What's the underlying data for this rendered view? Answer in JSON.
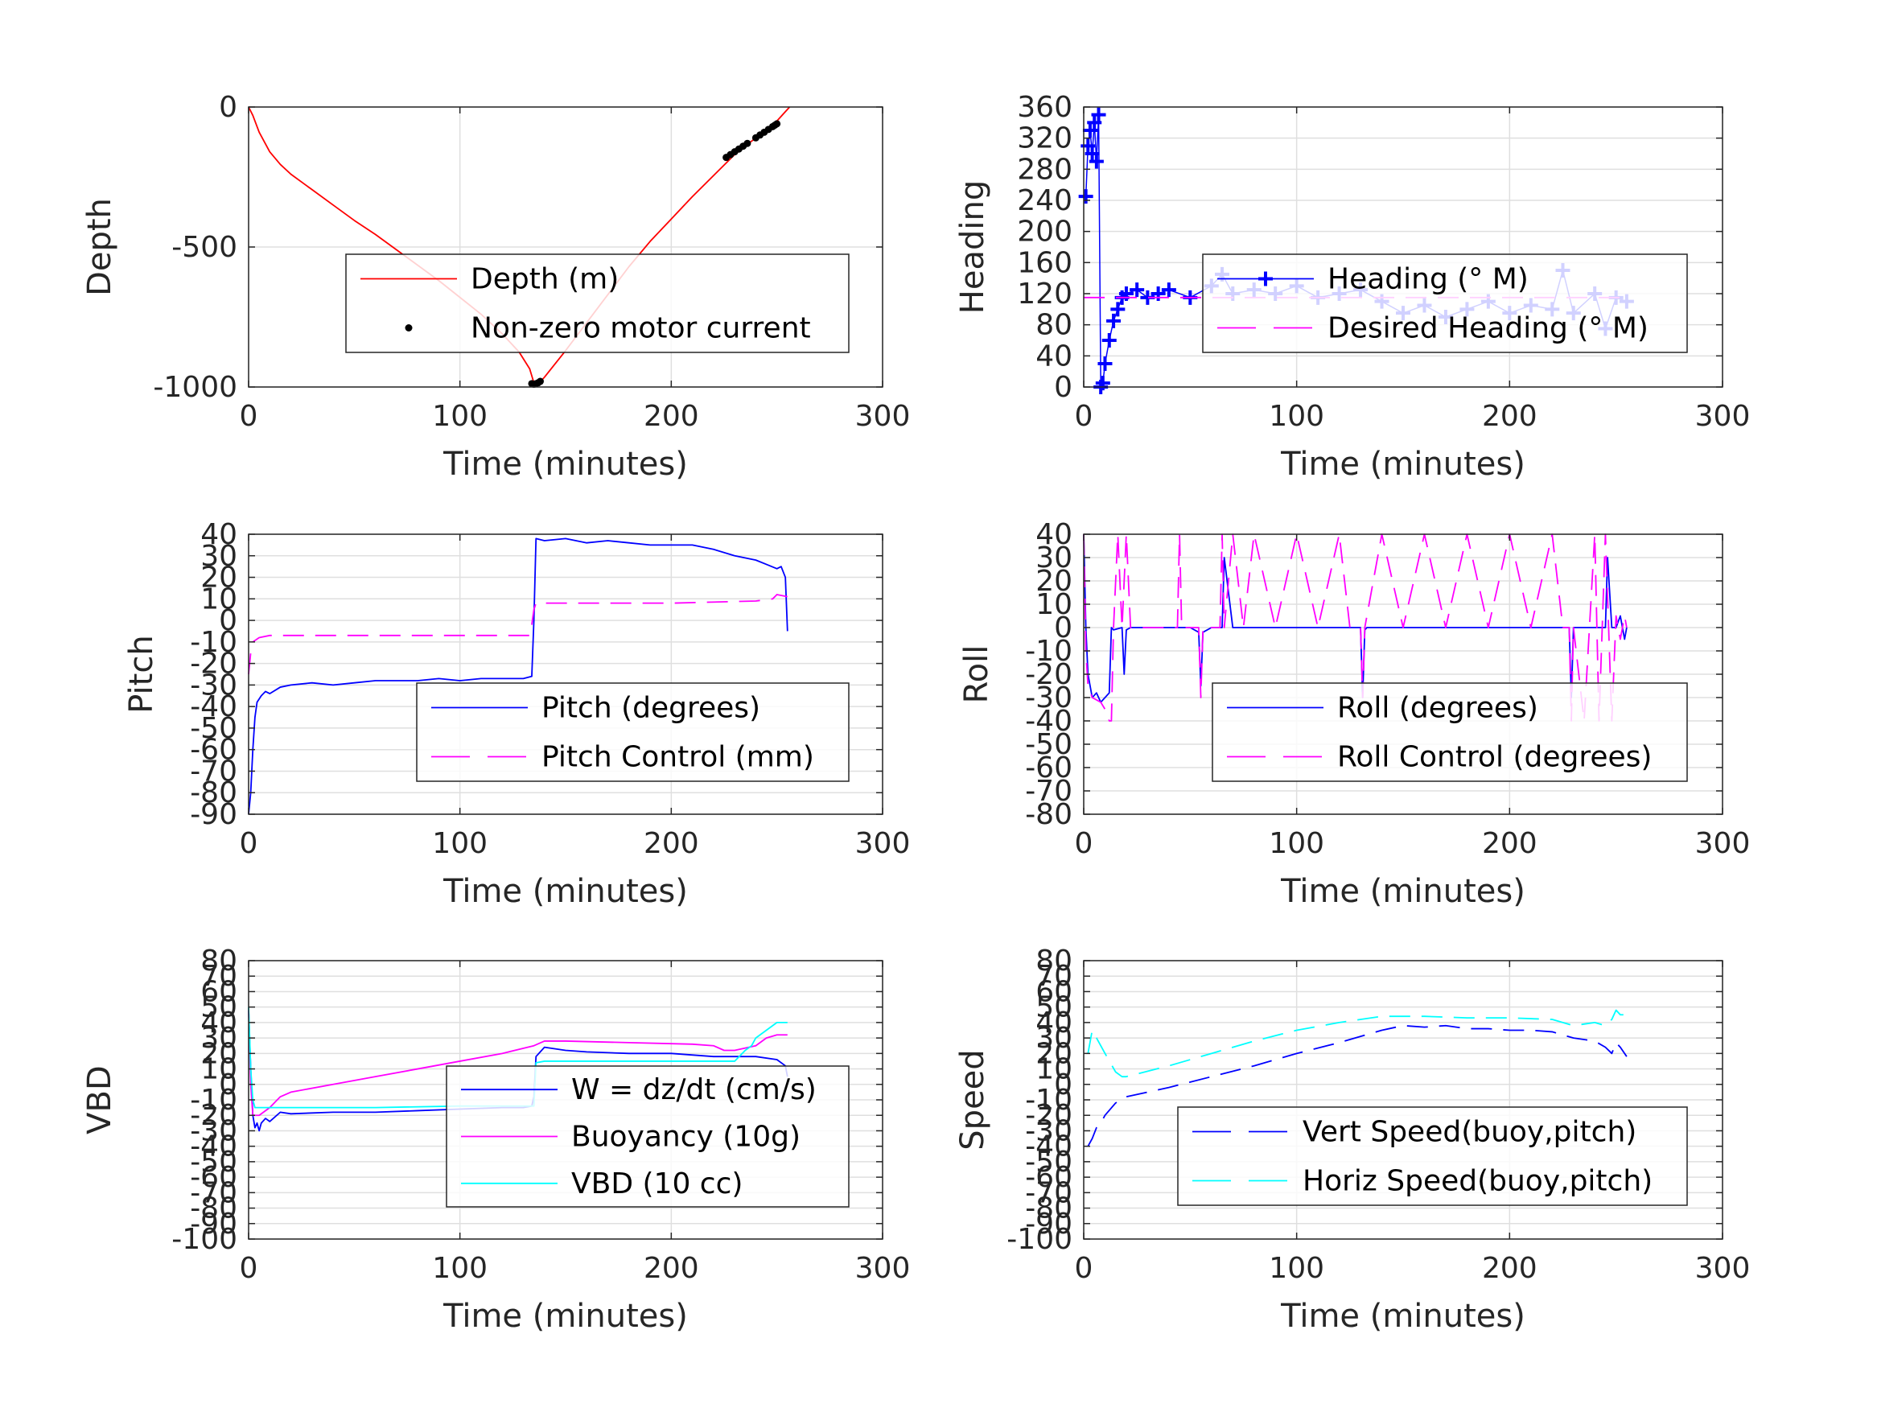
{
  "chart_data": [
    {
      "type": "line",
      "ylabel": "Depth",
      "xlabel": "Time (minutes)",
      "xlim": [
        0,
        300
      ],
      "ylim": [
        -1000,
        0
      ],
      "xticks": [
        "0",
        "100",
        "200",
        "300"
      ],
      "yticks": [
        "0",
        "-500",
        "-1000"
      ],
      "ytick_values": [
        0,
        -500,
        -1000
      ],
      "grid": true,
      "legend_position": "center-right",
      "series": [
        {
          "name": "Depth (m)",
          "color": "#ff0000",
          "style": "solid",
          "x": [
            0,
            2,
            5,
            10,
            15,
            20,
            30,
            40,
            50,
            60,
            70,
            80,
            90,
            100,
            110,
            120,
            128,
            133,
            135,
            137,
            140,
            150,
            160,
            170,
            180,
            190,
            200,
            210,
            220,
            230,
            240,
            250,
            256
          ],
          "y": [
            0,
            -30,
            -90,
            -160,
            -205,
            -240,
            -295,
            -350,
            -405,
            -455,
            -510,
            -565,
            -620,
            -680,
            -740,
            -810,
            -875,
            -935,
            -985,
            -990,
            -965,
            -870,
            -770,
            -670,
            -570,
            -480,
            -400,
            -320,
            -245,
            -170,
            -110,
            -50,
            0
          ]
        },
        {
          "name": "Non-zero motor current",
          "color": "#000000",
          "style": "dots",
          "x": [
            134,
            135,
            136,
            137,
            138,
            226,
            228,
            230,
            232,
            234,
            236,
            240,
            242,
            244,
            246,
            248,
            249,
            250
          ],
          "y": [
            -988,
            -990,
            -988,
            -985,
            -980,
            -180,
            -170,
            -160,
            -150,
            -140,
            -130,
            -110,
            -100,
            -90,
            -80,
            -70,
            -65,
            -60
          ]
        }
      ]
    },
    {
      "type": "line",
      "ylabel": "Heading",
      "xlabel": "Time (minutes)",
      "xlim": [
        0,
        300
      ],
      "ylim": [
        0,
        360
      ],
      "xticks": [
        "0",
        "100",
        "200",
        "300"
      ],
      "yticks": [
        "0",
        "40",
        "80",
        "120",
        "160",
        "200",
        "240",
        "280",
        "320",
        "360"
      ],
      "ytick_values": [
        0,
        40,
        80,
        120,
        160,
        200,
        240,
        280,
        320,
        360
      ],
      "grid": true,
      "legend_position": "center-right",
      "series": [
        {
          "name": "Heading (° M)",
          "color": "#0000ff",
          "style": "plus",
          "x": [
            1,
            2,
            3,
            4,
            5,
            6,
            7,
            8,
            9,
            10,
            12,
            14,
            16,
            18,
            20,
            25,
            30,
            35,
            40,
            50,
            60,
            65,
            70,
            80,
            90,
            100,
            110,
            120,
            130,
            140,
            150,
            160,
            170,
            180,
            190,
            200,
            210,
            220,
            225,
            230,
            240,
            245,
            250,
            255
          ],
          "y": [
            245,
            310,
            330,
            300,
            340,
            290,
            350,
            0,
            5,
            30,
            60,
            85,
            100,
            115,
            120,
            125,
            115,
            120,
            125,
            115,
            130,
            145,
            120,
            125,
            120,
            130,
            115,
            120,
            125,
            110,
            95,
            105,
            90,
            100,
            110,
            95,
            105,
            100,
            150,
            95,
            120,
            75,
            115,
            110
          ]
        },
        {
          "name": "Desired Heading (° M)",
          "color": "#ff00ff",
          "style": "dashed",
          "x": [
            0,
            255
          ],
          "y": [
            115,
            115
          ]
        }
      ]
    },
    {
      "type": "line",
      "ylabel": "Pitch",
      "xlabel": "Time (minutes)",
      "xlim": [
        0,
        300
      ],
      "ylim": [
        -90,
        40
      ],
      "xticks": [
        "0",
        "100",
        "200",
        "300"
      ],
      "yticks": [
        "40",
        "30",
        "20",
        "10",
        "0",
        "-10",
        "-20",
        "-30",
        "-40",
        "-50",
        "-60",
        "-70",
        "-80",
        "-90"
      ],
      "ytick_values": [
        40,
        30,
        20,
        10,
        0,
        -10,
        -20,
        -30,
        -40,
        -50,
        -60,
        -70,
        -80,
        -90
      ],
      "grid": true,
      "legend_position": "center-right",
      "series": [
        {
          "name": "Pitch (degrees)",
          "color": "#0000ff",
          "style": "solid",
          "x": [
            0,
            1,
            2,
            3,
            4,
            6,
            8,
            10,
            15,
            20,
            30,
            40,
            50,
            60,
            70,
            80,
            90,
            100,
            110,
            120,
            130,
            134,
            135,
            136,
            140,
            150,
            160,
            170,
            180,
            190,
            200,
            210,
            220,
            230,
            240,
            245,
            250,
            252,
            254,
            255
          ],
          "y": [
            -90,
            -80,
            -60,
            -45,
            -38,
            -35,
            -33,
            -34,
            -31,
            -30,
            -29,
            -30,
            -29,
            -28,
            -28,
            -28,
            -27,
            -28,
            -27,
            -27,
            -27,
            -26,
            0,
            38,
            37,
            38,
            36,
            37,
            36,
            35,
            35,
            35,
            33,
            30,
            28,
            26,
            24,
            25,
            20,
            -5
          ]
        },
        {
          "name": "Pitch Control (mm)",
          "color": "#ff00ff",
          "style": "dashed",
          "x": [
            0,
            1,
            2,
            5,
            10,
            60,
            120,
            133,
            134,
            135,
            136,
            140,
            200,
            240,
            248,
            250,
            255
          ],
          "y": [
            -25,
            -15,
            -10,
            -8,
            -7,
            -7,
            -7,
            -7,
            -2,
            5,
            8,
            8,
            8,
            9,
            10,
            12,
            11
          ]
        }
      ]
    },
    {
      "type": "line",
      "ylabel": "Roll",
      "xlabel": "Time (minutes)",
      "xlim": [
        0,
        300
      ],
      "ylim": [
        -80,
        40
      ],
      "xticks": [
        "0",
        "100",
        "200",
        "300"
      ],
      "yticks": [
        "40",
        "30",
        "20",
        "10",
        "0",
        "-10",
        "-20",
        "-30",
        "-40",
        "-50",
        "-60",
        "-70",
        "-80"
      ],
      "ytick_values": [
        40,
        30,
        20,
        10,
        0,
        -10,
        -20,
        -30,
        -40,
        -50,
        -60,
        -70,
        -80
      ],
      "grid": true,
      "legend_position": "center-right",
      "series": [
        {
          "name": "Roll (degrees)",
          "color": "#0000ff",
          "style": "solid",
          "x": [
            0,
            1,
            2,
            3,
            4,
            6,
            8,
            10,
            12,
            13,
            14,
            18,
            19,
            20,
            22,
            40,
            50,
            54,
            55,
            56,
            60,
            65,
            66,
            70,
            75,
            80,
            90,
            100,
            110,
            120,
            130,
            131,
            132,
            133,
            140,
            150,
            160,
            170,
            180,
            190,
            200,
            210,
            220,
            228,
            229,
            230,
            240,
            245,
            246,
            248,
            250,
            252,
            254,
            255
          ],
          "y": [
            40,
            0,
            -20,
            -25,
            -30,
            -28,
            -32,
            -30,
            -28,
            0,
            -1,
            0,
            -20,
            -1,
            0,
            0,
            0,
            -2,
            -25,
            -2,
            0,
            0,
            30,
            0,
            0,
            0,
            0,
            0,
            0,
            0,
            0,
            -30,
            -1,
            0,
            0,
            0,
            0,
            0,
            0,
            0,
            0,
            0,
            0,
            0,
            -30,
            0,
            0,
            0,
            30,
            0,
            0,
            5,
            -5,
            0
          ]
        },
        {
          "name": "Roll Control (degrees)",
          "color": "#ff00ff",
          "style": "dashed",
          "x": [
            0,
            1,
            2,
            4,
            8,
            10,
            12,
            13,
            14,
            16,
            18,
            20,
            22,
            40,
            44,
            45,
            46,
            54,
            55,
            56,
            60,
            64,
            65,
            66,
            70,
            75,
            80,
            90,
            100,
            110,
            120,
            125,
            130,
            131,
            132,
            140,
            150,
            160,
            170,
            180,
            190,
            200,
            210,
            220,
            225,
            228,
            229,
            230,
            235,
            240,
            242,
            245,
            248,
            250,
            252,
            254,
            255
          ],
          "y": [
            40,
            -10,
            -25,
            -30,
            -32,
            -35,
            -40,
            -40,
            0,
            40,
            0,
            40,
            0,
            0,
            0,
            40,
            0,
            0,
            -30,
            0,
            0,
            0,
            40,
            0,
            40,
            0,
            40,
            0,
            40,
            0,
            40,
            0,
            0,
            -30,
            0,
            40,
            0,
            40,
            0,
            40,
            0,
            40,
            0,
            40,
            0,
            0,
            -40,
            0,
            -40,
            40,
            -40,
            40,
            -40,
            5,
            -5,
            5,
            0
          ]
        }
      ]
    },
    {
      "type": "line",
      "ylabel": "VBD",
      "xlabel": "Time (minutes)",
      "xlim": [
        0,
        300
      ],
      "ylim": [
        -100,
        80
      ],
      "xticks": [
        "0",
        "100",
        "200",
        "300"
      ],
      "yticks": [
        "80",
        "70",
        "60",
        "50",
        "40",
        "30",
        "20",
        "10",
        "0",
        "-10",
        "-20",
        "-30",
        "-40",
        "-50",
        "-60",
        "-70",
        "-80",
        "-90",
        "-100"
      ],
      "ytick_values": [
        80,
        70,
        60,
        50,
        40,
        30,
        20,
        10,
        0,
        -10,
        -20,
        -30,
        -40,
        -50,
        -60,
        -70,
        -80,
        -90,
        -100
      ],
      "grid": true,
      "legend_position": "center-right",
      "series": [
        {
          "name": "W = dz/dt (cm/s)",
          "color": "#0000ff",
          "style": "solid",
          "x": [
            0,
            1,
            2,
            3,
            4,
            5,
            6,
            8,
            10,
            15,
            20,
            40,
            60,
            80,
            100,
            120,
            130,
            134,
            135,
            136,
            140,
            150,
            160,
            180,
            200,
            220,
            240,
            250,
            254,
            255
          ],
          "y": [
            48,
            10,
            -20,
            -28,
            -25,
            -30,
            -25,
            -22,
            -24,
            -18,
            -19,
            -18,
            -18,
            -17,
            -16,
            -15,
            -15,
            -14,
            -8,
            18,
            24,
            22,
            21,
            20,
            20,
            18,
            18,
            16,
            12,
            5
          ]
        },
        {
          "name": "Buoyancy (10g)",
          "color": "#ff00ff",
          "style": "solid",
          "x": [
            0,
            1,
            2,
            5,
            10,
            15,
            20,
            40,
            60,
            80,
            100,
            120,
            135,
            140,
            150,
            180,
            210,
            220,
            225,
            230,
            240,
            245,
            250,
            255
          ],
          "y": [
            48,
            0,
            -20,
            -20,
            -15,
            -8,
            -5,
            0,
            5,
            10,
            15,
            20,
            25,
            28,
            28,
            27,
            26,
            25,
            22,
            22,
            25,
            30,
            32,
            32
          ]
        },
        {
          "name": "VBD (10 cc)",
          "color": "#00ffff",
          "style": "solid",
          "x": [
            0,
            1,
            2,
            3,
            5,
            10,
            20,
            60,
            100,
            130,
            135,
            136,
            140,
            180,
            220,
            230,
            235,
            238,
            240,
            245,
            250,
            255
          ],
          "y": [
            50,
            10,
            -10,
            -15,
            -15,
            -15,
            -15,
            -15,
            -14,
            -14,
            -14,
            14,
            15,
            15,
            15,
            15,
            22,
            25,
            30,
            35,
            40,
            40
          ]
        }
      ]
    },
    {
      "type": "line",
      "ylabel": "Speed",
      "xlabel": "Time (minutes)",
      "xlim": [
        0,
        300
      ],
      "ylim": [
        -100,
        80
      ],
      "xticks": [
        "0",
        "100",
        "200",
        "300"
      ],
      "yticks": [
        "80",
        "70",
        "60",
        "50",
        "40",
        "30",
        "20",
        "10",
        "0",
        "-10",
        "-20",
        "-30",
        "-40",
        "-50",
        "-60",
        "-70",
        "-80",
        "-90",
        "-100"
      ],
      "ytick_values": [
        80,
        70,
        60,
        50,
        40,
        30,
        20,
        10,
        0,
        -10,
        -20,
        -30,
        -40,
        -50,
        -60,
        -70,
        -80,
        -90,
        -100
      ],
      "grid": true,
      "legend_position": "lower-right",
      "series": [
        {
          "name": "Vert Speed(buoy,pitch)",
          "color": "#0000ff",
          "style": "dashed",
          "x": [
            2,
            4,
            6,
            8,
            10,
            15,
            20,
            40,
            60,
            80,
            100,
            120,
            140,
            150,
            160,
            170,
            180,
            190,
            200,
            210,
            220,
            230,
            240,
            245,
            248,
            250,
            252,
            255
          ],
          "y": [
            -40,
            -35,
            -28,
            -25,
            -20,
            -12,
            -8,
            -2,
            5,
            12,
            20,
            27,
            35,
            38,
            37,
            38,
            36,
            36,
            35,
            35,
            34,
            30,
            28,
            24,
            20,
            27,
            24,
            18
          ]
        },
        {
          "name": "Horiz Speed(buoy,pitch)",
          "color": "#00ffff",
          "style": "dashed",
          "x": [
            2,
            4,
            6,
            8,
            10,
            15,
            18,
            20,
            40,
            60,
            80,
            100,
            120,
            140,
            150,
            160,
            180,
            200,
            220,
            230,
            240,
            245,
            248,
            250,
            252,
            255
          ],
          "y": [
            20,
            35,
            30,
            25,
            20,
            8,
            5,
            5,
            12,
            20,
            28,
            35,
            40,
            44,
            44,
            44,
            43,
            43,
            42,
            38,
            40,
            38,
            42,
            48,
            45,
            45
          ]
        }
      ]
    }
  ]
}
